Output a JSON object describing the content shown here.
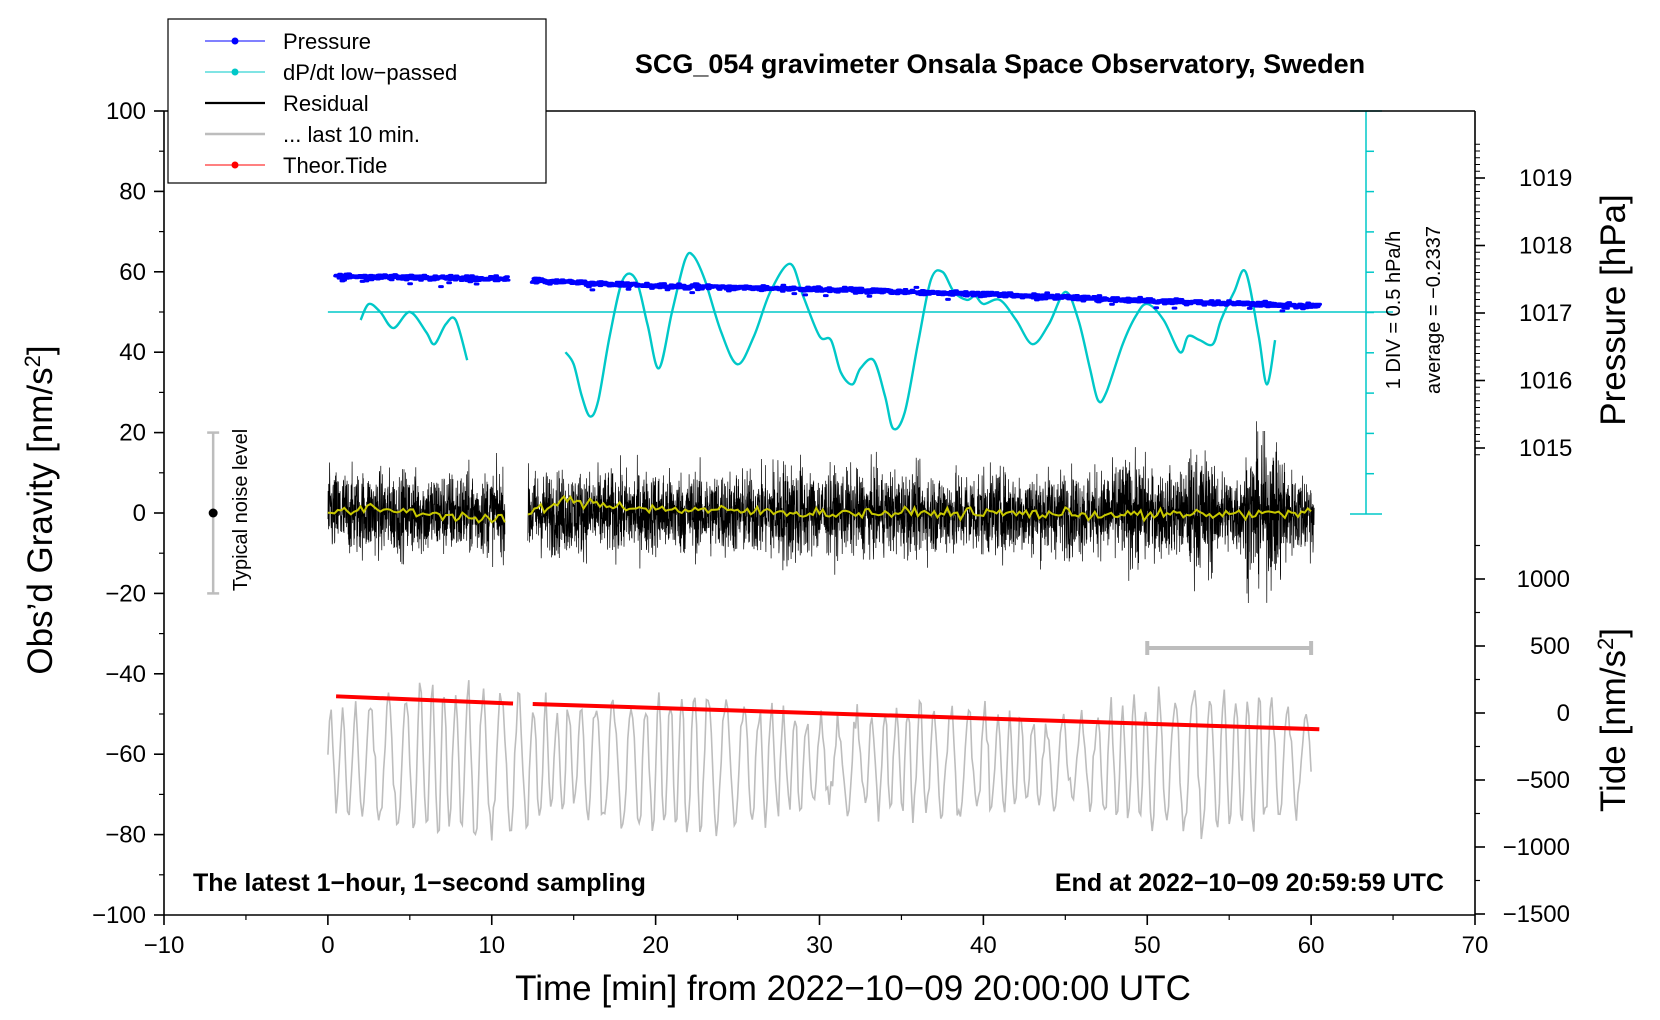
{
  "chart_data": {
    "type": "line",
    "title": "SCG_054 gravimeter Onsala Space Observatory, Sweden",
    "xlabel": "Time [min] from 2022−10−09 20:00:00 UTC",
    "ylabel_main": "Obs’d Gravity [nm/s",
    "ylabel_main_sup": "2",
    "ylabel_main_close": "]",
    "ylabel_pressure": "Pressure [hPa]",
    "ylabel_tide": "Tide [nm/s",
    "ylabel_tide_sup": "2",
    "ylabel_tide_close": "]",
    "xlim": [
      -10,
      70
    ],
    "ylim": [
      -100,
      100
    ],
    "x_ticks": [
      "−10",
      "0",
      "10",
      "20",
      "30",
      "40",
      "50",
      "60",
      "70"
    ],
    "y_ticks": [
      "100",
      "80",
      "60",
      "40",
      "20",
      "0",
      "−20",
      "−40",
      "−60",
      "−80",
      "−100"
    ],
    "pressure_ticks": [
      "1019",
      "1018",
      "1017",
      "1016",
      "1015"
    ],
    "tide_ticks": [
      "1000",
      "500",
      "0",
      "−500",
      "−1000",
      "−1500"
    ],
    "bottom_left_note": "The latest 1−hour, 1−second sampling",
    "bottom_right_note": "End at 2022−10−09 20:59:59 UTC",
    "noise_label": "Typical noise level",
    "scale_note_1": "1 DIV = 0.5 hPa/h",
    "scale_note_2": "average = −0.2337",
    "legend": [
      {
        "label": "Pressure",
        "color": "#0000ff",
        "marker": true
      },
      {
        "label": "dP/dt low−passed",
        "color": "#00c8c8",
        "marker": true
      },
      {
        "label": "Residual",
        "color": "#000000",
        "marker": false
      },
      {
        "label": "... last 10 min.",
        "color": "#bdbdbd",
        "marker": false
      },
      {
        "label": "Theor.Tide",
        "color": "#ff0000",
        "marker": true
      }
    ],
    "series": [
      {
        "name": "Pressure",
        "unit": "hPa",
        "x": [
          0.5,
          11,
          12.5,
          20,
          30,
          40,
          50,
          60.5
        ],
        "values": [
          1017.55,
          1017.5,
          1017.48,
          1017.4,
          1017.35,
          1017.28,
          1017.18,
          1017.1
        ]
      },
      {
        "name": "dP/dt low-passed",
        "unit": "plotted on gravity axis",
        "x": [
          2,
          2.5,
          3.2,
          4,
          5,
          6,
          6.5,
          7.2,
          7.8,
          8.5,
          14.5,
          15,
          15.5,
          16,
          16.5,
          17.2,
          18,
          18.8,
          19.5,
          20.2,
          21,
          21.8,
          22.3,
          23,
          24,
          25,
          26,
          27,
          28.2,
          29,
          30,
          30.7,
          31.3,
          32,
          32.5,
          33.3,
          34,
          34.5,
          35.2,
          36,
          36.8,
          37.5,
          38.2,
          39,
          39.5,
          40,
          41,
          42,
          43,
          44,
          45,
          45.8,
          46.5,
          47,
          47.5,
          48.5,
          49.3,
          50,
          51,
          52,
          52.5,
          53.2,
          54,
          54.5,
          55.3,
          56,
          56.8,
          57.3,
          57.8
        ],
        "values": [
          48,
          52,
          50,
          46,
          50,
          45,
          42,
          47,
          48,
          38,
          40,
          37,
          29,
          24,
          28,
          44,
          58,
          58,
          47,
          36,
          50,
          63,
          64,
          58,
          45,
          37,
          44,
          55,
          62,
          54,
          44,
          43,
          35,
          32,
          36,
          38,
          29,
          21,
          25,
          42,
          58,
          60,
          55,
          53,
          54,
          52,
          53,
          48,
          42,
          47,
          55,
          48,
          36,
          28,
          30,
          42,
          49,
          52,
          48,
          40,
          44,
          43,
          42,
          48,
          55,
          60,
          44,
          32,
          43
        ]
      },
      {
        "name": "Residual",
        "unit": "nm/s2",
        "x": [
          0,
          10.8,
          12.2,
          60.2
        ],
        "values": [
          0,
          0,
          0,
          0
        ]
      },
      {
        "name": "Residual smoothed",
        "unit": "nm/s2",
        "x": [
          0,
          3,
          6,
          10.8,
          12.2,
          14.5,
          20,
          30,
          40,
          50,
          60.2
        ],
        "values": [
          0,
          1,
          0,
          -2,
          0,
          3,
          1,
          0,
          0,
          -0.5,
          0
        ]
      },
      {
        "name": "... last 10 min.",
        "unit": "nm/s2",
        "x": [
          0,
          60
        ],
        "values": [
          -62,
          -62
        ]
      },
      {
        "name": "Theor.Tide",
        "unit": "nm/s2",
        "x": [
          0.5,
          11.3,
          12.5,
          60.5
        ],
        "values": [
          -45.6,
          -47.4,
          -47.5,
          -53.8
        ]
      }
    ],
    "noise_bar": {
      "x": -7,
      "y": 0,
      "range": [
        -20,
        20
      ]
    },
    "last10_range": [
      50,
      60
    ],
    "reference_line": {
      "y": 50
    }
  }
}
